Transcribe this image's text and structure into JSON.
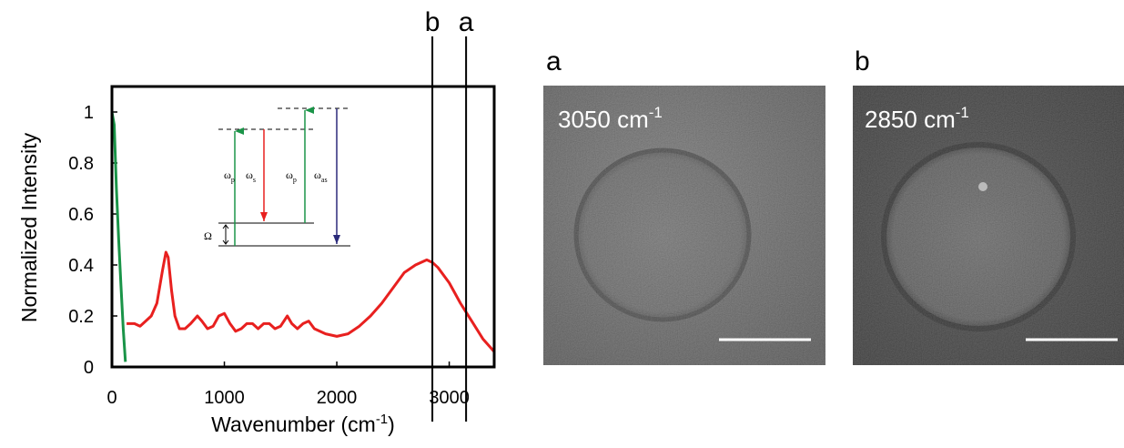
{
  "chart_data": {
    "type": "line",
    "xlabel": {
      "text": "Wavenumber (cm",
      "sup": "-1",
      "end": ")"
    },
    "ylabel": "Normalized Intensity",
    "xlim": [
      0,
      3400
    ],
    "ylim": [
      0,
      1.1
    ],
    "xticks": [
      0,
      1000,
      2000,
      3000
    ],
    "yticks": [
      0,
      0.2,
      0.4,
      0.6,
      0.8,
      1
    ],
    "series": [
      {
        "color": "#e8201f",
        "x": [
          130,
          200,
          250,
          300,
          350,
          400,
          450,
          480,
          500,
          530,
          560,
          600,
          650,
          700,
          760,
          800,
          850,
          900,
          950,
          1000,
          1050,
          1100,
          1150,
          1200,
          1250,
          1300,
          1350,
          1400,
          1450,
          1500,
          1560,
          1600,
          1650,
          1700,
          1750,
          1800,
          1900,
          2000,
          2100,
          2200,
          2300,
          2400,
          2500,
          2600,
          2700,
          2800,
          2850,
          2900,
          3000,
          3100,
          3200,
          3300,
          3400
        ],
        "values": [
          0.17,
          0.17,
          0.16,
          0.18,
          0.2,
          0.25,
          0.38,
          0.45,
          0.43,
          0.3,
          0.2,
          0.15,
          0.15,
          0.17,
          0.2,
          0.18,
          0.15,
          0.16,
          0.2,
          0.21,
          0.17,
          0.14,
          0.15,
          0.17,
          0.17,
          0.15,
          0.17,
          0.17,
          0.15,
          0.16,
          0.2,
          0.17,
          0.15,
          0.17,
          0.18,
          0.15,
          0.13,
          0.12,
          0.13,
          0.16,
          0.2,
          0.25,
          0.31,
          0.37,
          0.4,
          0.42,
          0.41,
          0.39,
          0.33,
          0.25,
          0.18,
          0.11,
          0.06
        ]
      },
      {
        "color": "#1a9448",
        "x": [
          0,
          20,
          40,
          60,
          80,
          100,
          120
        ],
        "values": [
          1.0,
          0.95,
          0.7,
          0.5,
          0.32,
          0.15,
          0.02
        ]
      }
    ],
    "markers": [
      {
        "x": 2850,
        "label": "b"
      },
      {
        "x": 3150,
        "label": "a"
      }
    ]
  },
  "inset": {
    "labels": [
      {
        "base": "ω",
        "sub": "p"
      },
      {
        "base": "ω",
        "sub": "s"
      },
      {
        "base": "ω",
        "sub": "p"
      },
      {
        "base": "ω",
        "sub": "as"
      }
    ],
    "shift": "Ω"
  },
  "panels": [
    {
      "label": "a",
      "text": "3050 cm",
      "sup": "-1"
    },
    {
      "label": "b",
      "text": "2850 cm",
      "sup": "-1"
    }
  ]
}
